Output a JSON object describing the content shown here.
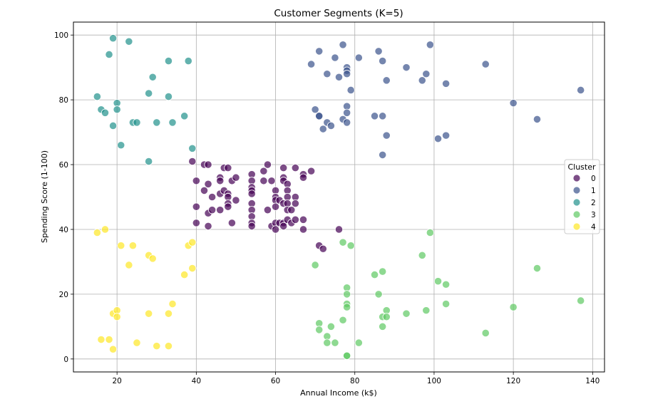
{
  "chart_data": {
    "type": "scatter",
    "title": "Customer Segments (K=5)",
    "xlabel": "Annual Income (k$)",
    "ylabel": "Spending Score (1-100)",
    "xlim": [
      9,
      143
    ],
    "ylim": [
      -4,
      104
    ],
    "xticks": [
      20,
      40,
      60,
      80,
      100,
      120,
      140
    ],
    "yticks": [
      0,
      20,
      40,
      60,
      80,
      100
    ],
    "grid": true,
    "legend": {
      "title": "Cluster",
      "position": "right"
    },
    "series": [
      {
        "name": "0",
        "color": "#440154",
        "points": [
          [
            39,
            61
          ],
          [
            40,
            55
          ],
          [
            40,
            47
          ],
          [
            40,
            42
          ],
          [
            42,
            52
          ],
          [
            42,
            60
          ],
          [
            43,
            60
          ],
          [
            43,
            54
          ],
          [
            43,
            45
          ],
          [
            43,
            41
          ],
          [
            44,
            50
          ],
          [
            44,
            46
          ],
          [
            46,
            56
          ],
          [
            46,
            55
          ],
          [
            46,
            51
          ],
          [
            46,
            46
          ],
          [
            47,
            59
          ],
          [
            47,
            52
          ],
          [
            48,
            59
          ],
          [
            48,
            51
          ],
          [
            48,
            50
          ],
          [
            48,
            48
          ],
          [
            48,
            47
          ],
          [
            49,
            55
          ],
          [
            49,
            42
          ],
          [
            50,
            56
          ],
          [
            50,
            49
          ],
          [
            54,
            57
          ],
          [
            54,
            55
          ],
          [
            54,
            53
          ],
          [
            54,
            52
          ],
          [
            54,
            51
          ],
          [
            54,
            48
          ],
          [
            54,
            46
          ],
          [
            54,
            44
          ],
          [
            54,
            42
          ],
          [
            54,
            41
          ],
          [
            57,
            58
          ],
          [
            57,
            55
          ],
          [
            58,
            60
          ],
          [
            58,
            46
          ],
          [
            59,
            55
          ],
          [
            59,
            41
          ],
          [
            60,
            52
          ],
          [
            60,
            50
          ],
          [
            60,
            49
          ],
          [
            60,
            47
          ],
          [
            60,
            42
          ],
          [
            60,
            40
          ],
          [
            61,
            49
          ],
          [
            61,
            42
          ],
          [
            62,
            59
          ],
          [
            62,
            56
          ],
          [
            62,
            55
          ],
          [
            62,
            48
          ],
          [
            62,
            42
          ],
          [
            62,
            41
          ],
          [
            63,
            54
          ],
          [
            63,
            52
          ],
          [
            63,
            50
          ],
          [
            63,
            48
          ],
          [
            63,
            46
          ],
          [
            63,
            43
          ],
          [
            64,
            46
          ],
          [
            64,
            42
          ],
          [
            65,
            59
          ],
          [
            65,
            50
          ],
          [
            65,
            48
          ],
          [
            65,
            43
          ],
          [
            67,
            57
          ],
          [
            67,
            56
          ],
          [
            67,
            43
          ],
          [
            67,
            40
          ],
          [
            69,
            58
          ],
          [
            71,
            35
          ],
          [
            72,
            34
          ],
          [
            76,
            40
          ]
        ]
      },
      {
        "name": "1",
        "color": "#3b528b",
        "points": [
          [
            69,
            91
          ],
          [
            70,
            77
          ],
          [
            71,
            95
          ],
          [
            71,
            75
          ],
          [
            71,
            75
          ],
          [
            72,
            71
          ],
          [
            73,
            88
          ],
          [
            73,
            73
          ],
          [
            74,
            72
          ],
          [
            75,
            93
          ],
          [
            76,
            87
          ],
          [
            77,
            97
          ],
          [
            77,
            74
          ],
          [
            78,
            90
          ],
          [
            78,
            89
          ],
          [
            78,
            88
          ],
          [
            78,
            78
          ],
          [
            78,
            76
          ],
          [
            78,
            73
          ],
          [
            79,
            83
          ],
          [
            81,
            93
          ],
          [
            85,
            75
          ],
          [
            86,
            95
          ],
          [
            87,
            92
          ],
          [
            87,
            75
          ],
          [
            87,
            63
          ],
          [
            88,
            86
          ],
          [
            88,
            69
          ],
          [
            93,
            90
          ],
          [
            97,
            86
          ],
          [
            98,
            88
          ],
          [
            99,
            97
          ],
          [
            101,
            68
          ],
          [
            103,
            85
          ],
          [
            103,
            69
          ],
          [
            113,
            91
          ],
          [
            120,
            79
          ],
          [
            126,
            74
          ],
          [
            137,
            83
          ]
        ]
      },
      {
        "name": "2",
        "color": "#21918c",
        "points": [
          [
            15,
            81
          ],
          [
            16,
            77
          ],
          [
            17,
            76
          ],
          [
            18,
            94
          ],
          [
            19,
            99
          ],
          [
            19,
            72
          ],
          [
            20,
            79
          ],
          [
            20,
            77
          ],
          [
            21,
            66
          ],
          [
            23,
            98
          ],
          [
            24,
            73
          ],
          [
            25,
            73
          ],
          [
            28,
            82
          ],
          [
            28,
            61
          ],
          [
            29,
            87
          ],
          [
            30,
            73
          ],
          [
            33,
            92
          ],
          [
            33,
            81
          ],
          [
            34,
            73
          ],
          [
            37,
            75
          ],
          [
            38,
            92
          ],
          [
            39,
            65
          ]
        ]
      },
      {
        "name": "3",
        "color": "#5ec962",
        "points": [
          [
            70,
            29
          ],
          [
            71,
            11
          ],
          [
            71,
            9
          ],
          [
            73,
            7
          ],
          [
            73,
            5
          ],
          [
            74,
            10
          ],
          [
            75,
            5
          ],
          [
            77,
            36
          ],
          [
            77,
            12
          ],
          [
            78,
            22
          ],
          [
            78,
            20
          ],
          [
            78,
            17
          ],
          [
            78,
            16
          ],
          [
            78,
            1
          ],
          [
            78,
            1
          ],
          [
            79,
            35
          ],
          [
            81,
            5
          ],
          [
            85,
            26
          ],
          [
            86,
            20
          ],
          [
            87,
            27
          ],
          [
            87,
            13
          ],
          [
            87,
            10
          ],
          [
            88,
            15
          ],
          [
            88,
            13
          ],
          [
            93,
            14
          ],
          [
            97,
            32
          ],
          [
            98,
            15
          ],
          [
            99,
            39
          ],
          [
            101,
            24
          ],
          [
            103,
            23
          ],
          [
            103,
            17
          ],
          [
            113,
            8
          ],
          [
            120,
            16
          ],
          [
            126,
            28
          ],
          [
            137,
            18
          ]
        ]
      },
      {
        "name": "4",
        "color": "#fde725",
        "points": [
          [
            15,
            39
          ],
          [
            16,
            6
          ],
          [
            17,
            40
          ],
          [
            18,
            6
          ],
          [
            19,
            14
          ],
          [
            19,
            3
          ],
          [
            20,
            15
          ],
          [
            20,
            13
          ],
          [
            21,
            35
          ],
          [
            23,
            29
          ],
          [
            24,
            35
          ],
          [
            25,
            5
          ],
          [
            28,
            32
          ],
          [
            28,
            14
          ],
          [
            29,
            31
          ],
          [
            30,
            4
          ],
          [
            33,
            14
          ],
          [
            33,
            4
          ],
          [
            34,
            17
          ],
          [
            37,
            26
          ],
          [
            38,
            35
          ],
          [
            39,
            36
          ],
          [
            39,
            28
          ]
        ]
      }
    ]
  }
}
